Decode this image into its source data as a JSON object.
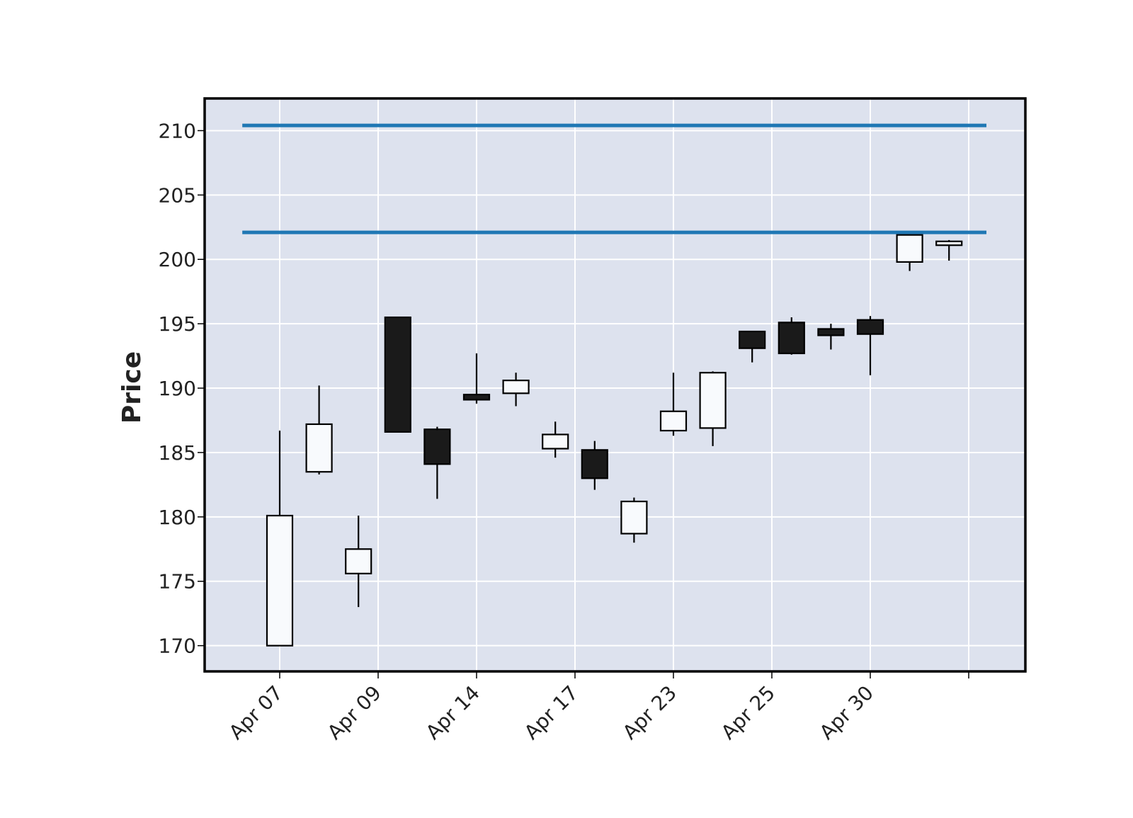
{
  "chart_data": {
    "type": "candlestick",
    "title": "",
    "xlabel": "",
    "ylabel": "Price",
    "ylim": [
      168,
      212.5
    ],
    "grid": true,
    "y_ticks": [
      170,
      175,
      180,
      185,
      190,
      195,
      200,
      205,
      210
    ],
    "x_tick_labels": [
      "Apr 07",
      "Apr 09",
      "Apr 14",
      "Apr 17",
      "Apr 23",
      "Apr 25",
      "Apr 30"
    ],
    "candles": [
      {
        "open": 170.0,
        "high": 186.7,
        "low": 170.0,
        "close": 180.1
      },
      {
        "open": 183.5,
        "high": 190.2,
        "low": 183.3,
        "close": 187.2
      },
      {
        "open": 175.6,
        "high": 180.1,
        "low": 173.0,
        "close": 177.5
      },
      {
        "open": 195.5,
        "high": 195.5,
        "low": 186.6,
        "close": 186.6
      },
      {
        "open": 186.8,
        "high": 187.0,
        "low": 181.4,
        "close": 184.1
      },
      {
        "open": 189.5,
        "high": 192.7,
        "low": 188.8,
        "close": 189.1
      },
      {
        "open": 189.6,
        "high": 191.2,
        "low": 188.6,
        "close": 190.6
      },
      {
        "open": 185.3,
        "high": 187.4,
        "low": 184.6,
        "close": 186.4
      },
      {
        "open": 185.2,
        "high": 185.9,
        "low": 182.1,
        "close": 183.0
      },
      {
        "open": 178.7,
        "high": 181.5,
        "low": 178.0,
        "close": 181.2
      },
      {
        "open": 186.7,
        "high": 191.2,
        "low": 186.3,
        "close": 188.2
      },
      {
        "open": 186.9,
        "high": 191.3,
        "low": 185.5,
        "close": 191.2
      },
      {
        "open": 194.4,
        "high": 194.4,
        "low": 192.0,
        "close": 193.1
      },
      {
        "open": 195.1,
        "high": 195.5,
        "low": 192.6,
        "close": 192.7
      },
      {
        "open": 194.6,
        "high": 195.0,
        "low": 193.0,
        "close": 194.1
      },
      {
        "open": 195.3,
        "high": 195.6,
        "low": 191.0,
        "close": 194.2
      },
      {
        "open": 199.8,
        "high": 201.9,
        "low": 199.1,
        "close": 201.9
      },
      {
        "open": 201.1,
        "high": 201.5,
        "low": 199.9,
        "close": 201.4
      }
    ],
    "hlines": [
      210.4,
      202.1
    ],
    "colors": {
      "up_fill": "#f8fafd",
      "down_fill": "#1a1a1a",
      "candle_edge": "#000000",
      "hline": "#1f77b4",
      "plot_background": "#dde2ee",
      "grid": "#ffffff",
      "frame": "#000000"
    }
  }
}
